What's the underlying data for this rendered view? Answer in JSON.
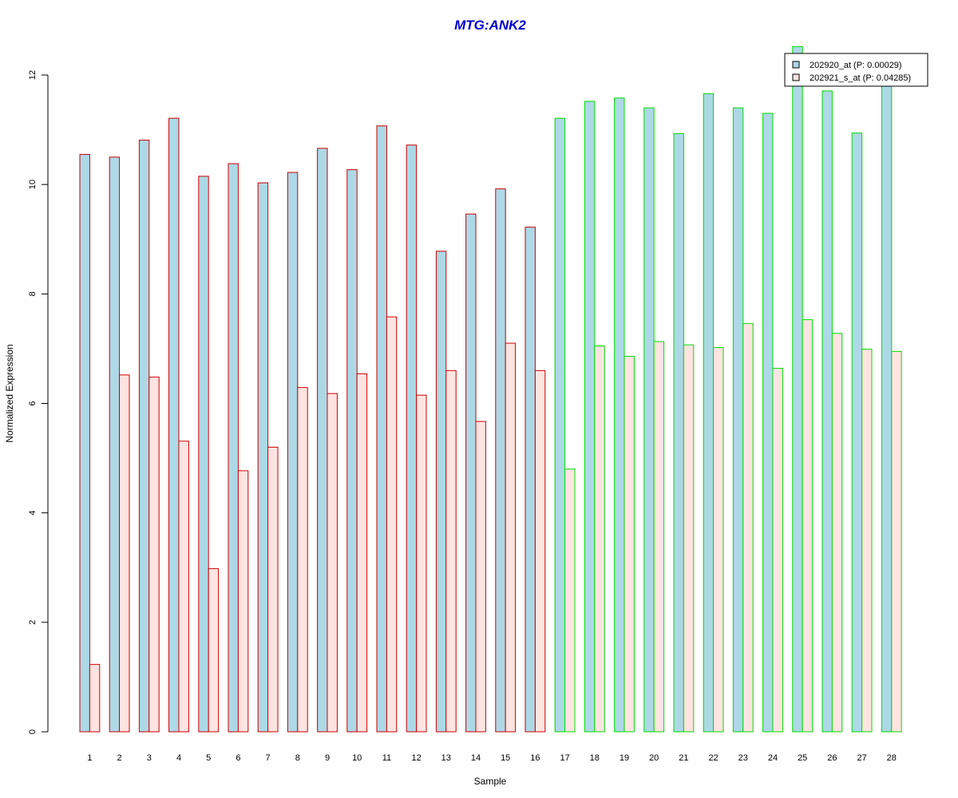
{
  "chart_data": {
    "type": "bar",
    "title": "MTG:ANK2",
    "xlabel": "Sample",
    "ylabel": "Normalized Expression",
    "ylim": [
      0,
      12
    ],
    "yticks": [
      "0",
      "2",
      "4",
      "6",
      "8",
      "10",
      "12"
    ],
    "categories": [
      "1",
      "2",
      "3",
      "4",
      "5",
      "6",
      "7",
      "8",
      "9",
      "10",
      "11",
      "12",
      "13",
      "14",
      "15",
      "16",
      "17",
      "18",
      "19",
      "20",
      "21",
      "22",
      "23",
      "24",
      "25",
      "26",
      "27",
      "28"
    ],
    "groups": [
      {
        "samples": [
          1,
          16
        ],
        "outline_color": "#cc0000"
      },
      {
        "samples": [
          17,
          28
        ],
        "outline_color": "#00dd00"
      }
    ],
    "series": [
      {
        "name": "202920_at (P: 0.00029)",
        "fill_color": "#add8e6",
        "values": [
          10.55,
          10.5,
          10.81,
          11.21,
          10.15,
          10.38,
          10.03,
          10.22,
          10.66,
          10.27,
          11.07,
          10.72,
          8.78,
          9.46,
          9.92,
          9.22,
          11.21,
          11.52,
          11.58,
          11.4,
          10.93,
          11.66,
          11.4,
          11.3,
          12.52,
          11.71,
          10.94,
          11.9
        ]
      },
      {
        "name": "202921_s_at (P: 0.04285)",
        "fill_color": "#ffe4e1",
        "values": [
          1.23,
          6.52,
          6.48,
          5.31,
          2.98,
          4.77,
          5.2,
          6.29,
          6.18,
          6.54,
          7.58,
          6.15,
          6.6,
          5.67,
          7.1,
          6.6,
          4.8,
          7.05,
          6.86,
          7.13,
          7.07,
          7.02,
          7.46,
          6.64,
          7.53,
          7.28,
          6.99,
          6.95
        ]
      }
    ],
    "legend": {
      "position": "top-right",
      "entries": [
        "202920_at (P: 0.00029)",
        "202921_s_at (P: 0.04285)"
      ]
    },
    "grid": false
  }
}
